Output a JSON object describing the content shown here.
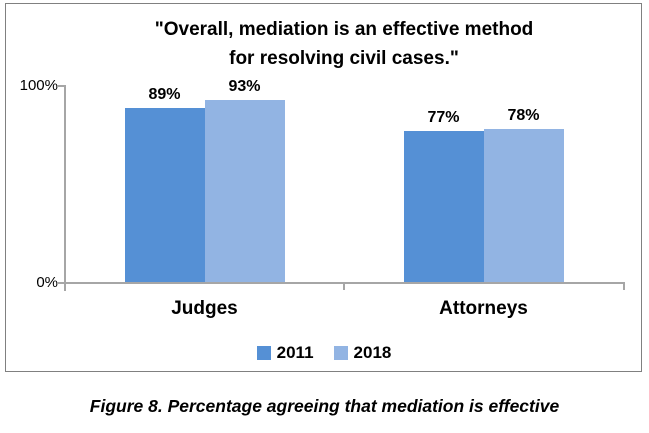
{
  "chart_data": {
    "type": "bar",
    "title_line1": "\"Overall, mediation is an effective method",
    "title_line2": "for resolving civil cases.\"",
    "categories": [
      "Judges",
      "Attorneys"
    ],
    "series": [
      {
        "name": "2011",
        "color": "#5590D5",
        "values": [
          89,
          77
        ],
        "labels": [
          "89%",
          "77%"
        ]
      },
      {
        "name": "2018",
        "color": "#92B4E3",
        "values": [
          93,
          78
        ],
        "labels": [
          "93%",
          "78%"
        ]
      }
    ],
    "y_ticks": {
      "top": "100%",
      "bottom": "0%"
    },
    "ylim": [
      0,
      100
    ],
    "legend_position": "bottom",
    "grid": "off",
    "axis_color": "#A6A6A6",
    "frame_border_color": "#808080"
  },
  "caption": "Figure 8. Percentage agreeing that mediation is effective"
}
